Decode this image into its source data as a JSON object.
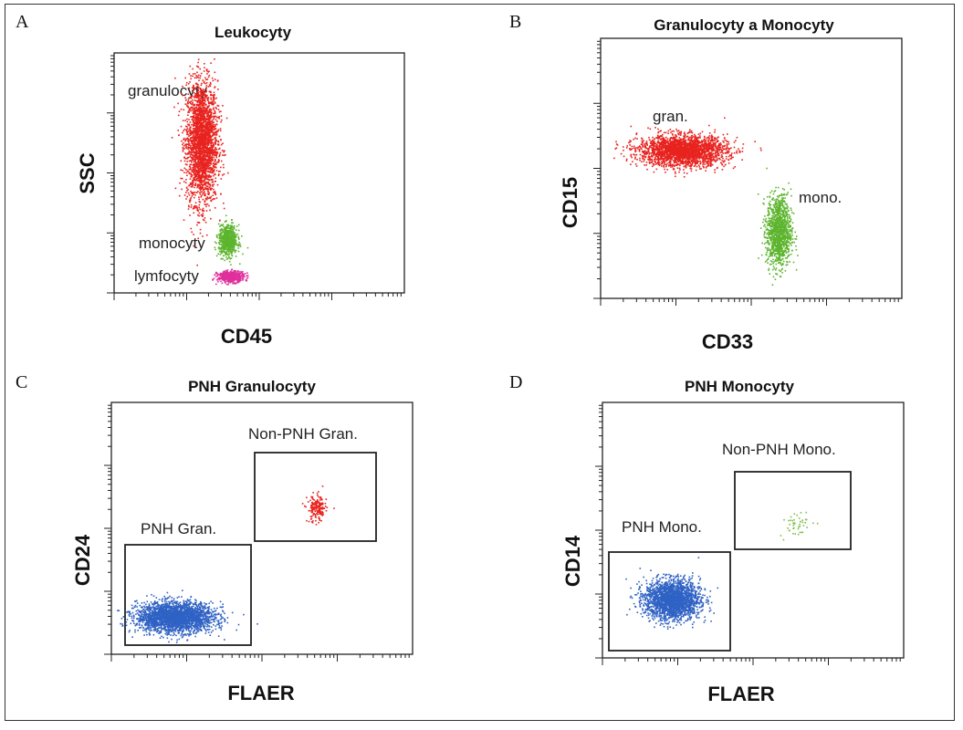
{
  "chart_data": [
    {
      "panel": "A",
      "type": "scatter",
      "title": "Leukocyty",
      "xlabel": "CD45",
      "ylabel": "SSC",
      "x_scale": "log",
      "annotations": [
        "granulocyty",
        "monocyty",
        "lymfocyty"
      ],
      "series": [
        {
          "name": "granulocyty",
          "color": "#e8231f",
          "center": [
            0.3,
            0.63
          ],
          "spread": [
            0.06,
            0.28
          ],
          "count": 2600
        },
        {
          "name": "monocyty",
          "color": "#5db52e",
          "center": [
            0.39,
            0.22
          ],
          "spread": [
            0.035,
            0.07
          ],
          "count": 700
        },
        {
          "name": "lymfocyty",
          "color": "#e0309c",
          "center": [
            0.4,
            0.07
          ],
          "spread": [
            0.05,
            0.025
          ],
          "count": 500
        }
      ]
    },
    {
      "panel": "B",
      "type": "scatter",
      "title": "Granulocyty a Monocyty",
      "xlabel": "CD33",
      "ylabel": "CD15",
      "x_scale": "log",
      "y_scale": "log",
      "annotations": [
        "gran.",
        "mono."
      ],
      "series": [
        {
          "name": "gran.",
          "color": "#e8231f",
          "center": [
            0.27,
            0.57
          ],
          "spread": [
            0.16,
            0.065
          ],
          "count": 2400
        },
        {
          "name": "mono.",
          "color": "#5db52e",
          "center": [
            0.59,
            0.26
          ],
          "spread": [
            0.045,
            0.15
          ],
          "count": 1200
        }
      ]
    },
    {
      "panel": "C",
      "type": "scatter",
      "title": "PNH Granulocyty",
      "xlabel": "FLAER",
      "ylabel": "CD24",
      "x_scale": "log",
      "y_scale": "log",
      "gates": [
        "PNH Gran.",
        "Non-PNH Gran."
      ],
      "series": [
        {
          "name": "PNH Gran.",
          "color": "#2f62c4",
          "center": [
            0.21,
            0.15
          ],
          "spread": [
            0.14,
            0.065
          ],
          "count": 2600
        },
        {
          "name": "Non-PNH Gran.",
          "color": "#e8231f",
          "center": [
            0.68,
            0.58
          ],
          "spread": [
            0.035,
            0.06
          ],
          "count": 180
        }
      ]
    },
    {
      "panel": "D",
      "type": "scatter",
      "title": "PNH Monocyty",
      "xlabel": "FLAER",
      "ylabel": "CD14",
      "x_scale": "log",
      "y_scale": "log",
      "gates": [
        "PNH Mono.",
        "Non-PNH Mono."
      ],
      "series": [
        {
          "name": "PNH Mono.",
          "color": "#2f62c4",
          "center": [
            0.23,
            0.23
          ],
          "spread": [
            0.1,
            0.085
          ],
          "count": 2200
        },
        {
          "name": "Non-PNH Mono.",
          "color": "#7dbf45",
          "center": [
            0.64,
            0.53
          ],
          "spread": [
            0.06,
            0.06
          ],
          "count": 45
        }
      ]
    }
  ],
  "panel_letters": [
    "A",
    "B",
    "C",
    "D"
  ]
}
